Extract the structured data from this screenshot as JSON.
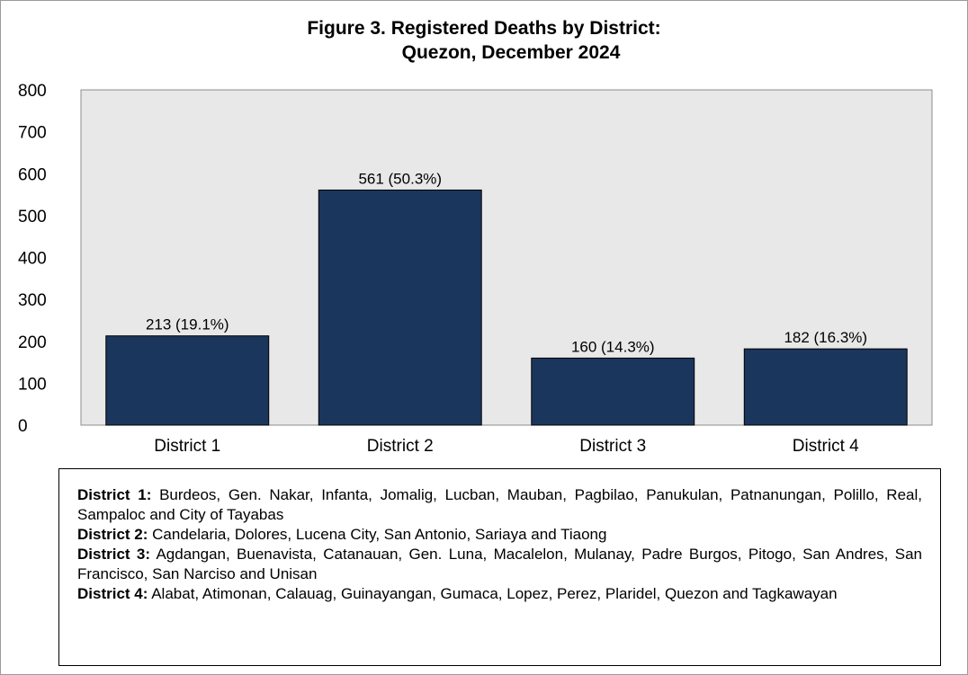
{
  "chart_data": {
    "type": "bar",
    "title_line1": "Figure 3. Registered Deaths by District:",
    "title_line2": "Quezon, December 2024",
    "categories": [
      "District 1",
      "District 2",
      "District 3",
      "District 4"
    ],
    "values": [
      213,
      561,
      160,
      182
    ],
    "data_labels": [
      "213 (19.1%)",
      "561 (50.3%)",
      "160 (14.3%)",
      "182 (16.3%)"
    ],
    "ylim": [
      0,
      800
    ],
    "yticks": [
      0,
      100,
      200,
      300,
      400,
      500,
      600,
      700,
      800
    ],
    "xlabel": "",
    "ylabel": "",
    "bar_color": "#1b365d",
    "plot_background": "#e8e8e8",
    "grid": false,
    "legend": "none"
  },
  "notes": [
    {
      "label": "District 1:",
      "text": "Burdeos, Gen. Nakar, Infanta, Jomalig, Lucban, Mauban, Pagbilao, Panukulan, Patnanungan, Polillo, Real, Sampaloc and City of Tayabas"
    },
    {
      "label": "District 2:",
      "text": "Candelaria, Dolores, Lucena City, San Antonio, Sariaya and Tiaong"
    },
    {
      "label": "District 3:",
      "text": "Agdangan, Buenavista, Catanauan, Gen. Luna, Macalelon, Mulanay, Padre Burgos, Pitogo, San Andres, San Francisco, San Narciso and Unisan"
    },
    {
      "label": "District 4:",
      "text": "Alabat, Atimonan, Calauag, Guinayangan, Gumaca, Lopez, Perez, Plaridel, Quezon and Tagkawayan"
    }
  ]
}
